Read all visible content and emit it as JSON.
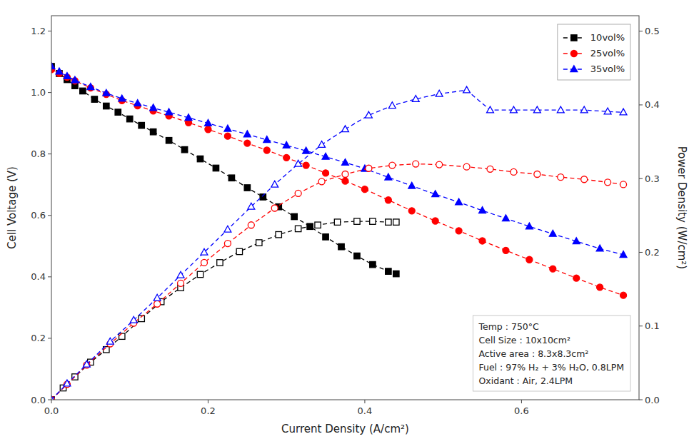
{
  "chart_data": {
    "type": "line",
    "xlabel": "Current Density (A/cm²)",
    "ylabel": "Cell Voltage (V)",
    "y2label": "Power Density (W/cm²)",
    "annotation": "Temp : 750°C\nCell Size : 10x10cm²\nActive area : 8.3x8.3cm²\nFuel : 97% H₂ + 3% H₂O, 0.8LPM\nOxidant : Air, 2.4LPM",
    "xlim": [
      0,
      0.75
    ],
    "xticks": [
      {
        "value": 0,
        "label": "0.0"
      },
      0.2,
      0.4,
      0.6
    ],
    "ylim": [
      0.0,
      1.25
    ],
    "yticks": [
      {
        "value": 0,
        "label": "0.0"
      },
      0.2,
      0.4,
      0.6,
      0.8,
      {
        "value": 1,
        "label": "1.0"
      },
      1.2
    ],
    "y2lim": [
      0.0,
      0.521
    ],
    "y2ticks": [
      {
        "value": 0,
        "label": "0.0"
      },
      0.1,
      0.2,
      0.3,
      0.4,
      0.5
    ],
    "grid": false,
    "legend": "upper right",
    "series": [
      {
        "name": "10vol%",
        "color": "black",
        "marker": "square",
        "line_style": "dashed",
        "x": [
          0.0,
          0.01,
          0.02,
          0.03,
          0.04,
          0.055,
          0.07,
          0.085,
          0.1,
          0.115,
          0.13,
          0.15,
          0.17,
          0.19,
          0.21,
          0.23,
          0.25,
          0.27,
          0.29,
          0.31,
          0.33,
          0.35,
          0.37,
          0.39,
          0.41,
          0.43,
          0.44
        ],
        "values": [
          1.085,
          1.062,
          1.042,
          1.022,
          1.005,
          0.978,
          0.956,
          0.936,
          0.914,
          0.893,
          0.872,
          0.844,
          0.814,
          0.784,
          0.754,
          0.722,
          0.69,
          0.66,
          0.628,
          0.596,
          0.564,
          0.53,
          0.498,
          0.468,
          0.44,
          0.418,
          0.41
        ]
      },
      {
        "name": "25vol%",
        "color": "red",
        "marker": "circle",
        "line_style": "dashed",
        "x": [
          0.0,
          0.01,
          0.02,
          0.03,
          0.05,
          0.07,
          0.09,
          0.11,
          0.13,
          0.15,
          0.175,
          0.2,
          0.225,
          0.25,
          0.275,
          0.3,
          0.325,
          0.35,
          0.375,
          0.4,
          0.43,
          0.46,
          0.49,
          0.52,
          0.55,
          0.58,
          0.61,
          0.64,
          0.67,
          0.7,
          0.73
        ],
        "values": [
          1.075,
          1.062,
          1.05,
          1.038,
          1.015,
          0.994,
          0.974,
          0.957,
          0.94,
          0.924,
          0.902,
          0.88,
          0.858,
          0.835,
          0.812,
          0.788,
          0.763,
          0.738,
          0.712,
          0.685,
          0.65,
          0.615,
          0.582,
          0.55,
          0.517,
          0.486,
          0.456,
          0.426,
          0.396,
          0.366,
          0.34
        ]
      },
      {
        "name": "35vol%",
        "color": "blue",
        "marker": "triangle",
        "line_style": "dashed",
        "x": [
          0.0,
          0.01,
          0.02,
          0.03,
          0.05,
          0.07,
          0.09,
          0.11,
          0.13,
          0.15,
          0.175,
          0.2,
          0.225,
          0.25,
          0.275,
          0.3,
          0.325,
          0.35,
          0.375,
          0.4,
          0.43,
          0.46,
          0.49,
          0.52,
          0.55,
          0.58,
          0.61,
          0.64,
          0.67,
          0.7,
          0.73
        ],
        "values": [
          1.085,
          1.068,
          1.053,
          1.04,
          1.018,
          0.998,
          0.98,
          0.965,
          0.95,
          0.936,
          0.918,
          0.9,
          0.882,
          0.864,
          0.846,
          0.828,
          0.81,
          0.791,
          0.772,
          0.752,
          0.724,
          0.696,
          0.669,
          0.643,
          0.616,
          0.59,
          0.564,
          0.54,
          0.516,
          0.492,
          0.472
        ]
      },
      {
        "axis": "y2",
        "color": "black",
        "marker": "open-square",
        "line_style": "dashed",
        "x": [
          0.0,
          0.015,
          0.03,
          0.05,
          0.07,
          0.09,
          0.115,
          0.14,
          0.165,
          0.19,
          0.215,
          0.24,
          0.265,
          0.29,
          0.315,
          0.34,
          0.365,
          0.39,
          0.41,
          0.43,
          0.44
        ],
        "values": [
          0.0,
          0.016,
          0.031,
          0.051,
          0.068,
          0.086,
          0.11,
          0.133,
          0.152,
          0.17,
          0.186,
          0.201,
          0.213,
          0.224,
          0.232,
          0.237,
          0.241,
          0.242,
          0.242,
          0.241,
          0.241
        ]
      },
      {
        "axis": "y2",
        "color": "red",
        "marker": "open-circle",
        "line_style": "dashed",
        "x": [
          0.0,
          0.02,
          0.045,
          0.075,
          0.105,
          0.135,
          0.165,
          0.195,
          0.225,
          0.255,
          0.285,
          0.315,
          0.345,
          0.375,
          0.405,
          0.435,
          0.465,
          0.495,
          0.53,
          0.56,
          0.59,
          0.62,
          0.65,
          0.68,
          0.71,
          0.73
        ],
        "values": [
          0.0,
          0.021,
          0.047,
          0.076,
          0.104,
          0.13,
          0.158,
          0.186,
          0.212,
          0.237,
          0.26,
          0.28,
          0.296,
          0.306,
          0.314,
          0.318,
          0.32,
          0.319,
          0.316,
          0.313,
          0.309,
          0.306,
          0.302,
          0.299,
          0.295,
          0.292
        ]
      },
      {
        "axis": "y2",
        "color": "blue",
        "marker": "open-triangle",
        "line_style": "dashed",
        "x": [
          0.0,
          0.02,
          0.045,
          0.075,
          0.105,
          0.135,
          0.165,
          0.195,
          0.225,
          0.255,
          0.285,
          0.315,
          0.345,
          0.375,
          0.405,
          0.435,
          0.465,
          0.495,
          0.53,
          0.56,
          0.59,
          0.62,
          0.65,
          0.68,
          0.71,
          0.73
        ],
        "values": [
          0.0,
          0.022,
          0.048,
          0.079,
          0.108,
          0.138,
          0.169,
          0.2,
          0.231,
          0.262,
          0.292,
          0.32,
          0.346,
          0.367,
          0.386,
          0.399,
          0.408,
          0.415,
          0.42,
          0.393,
          0.393,
          0.393,
          0.393,
          0.393,
          0.391,
          0.39
        ]
      }
    ]
  }
}
